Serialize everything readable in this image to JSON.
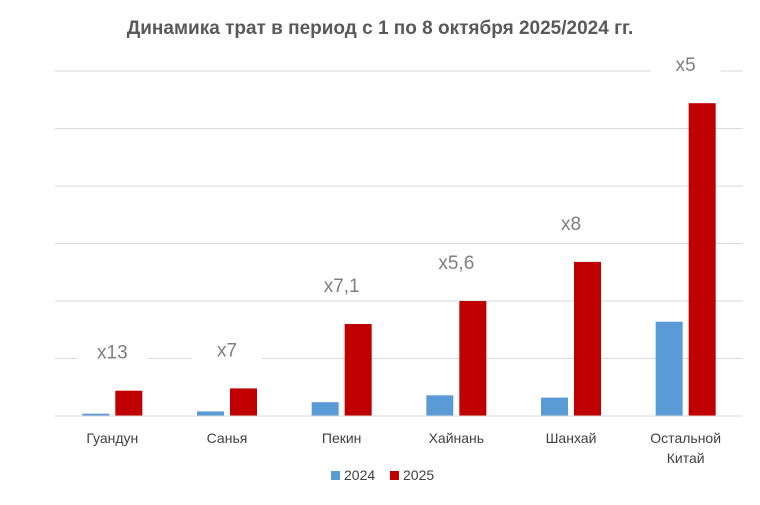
{
  "chart_data": {
    "type": "bar",
    "title": "Динамика трат в период с 1 по 8 октября 2025/2024 гг.",
    "categories": [
      "Гуандун",
      "Санья",
      "Пекин",
      "Хайнань",
      "Шанхай",
      "Остальной Китай"
    ],
    "category_lines": [
      [
        "Гуандун"
      ],
      [
        "Санья"
      ],
      [
        "Пекин"
      ],
      [
        "Хайнань"
      ],
      [
        "Шанхай"
      ],
      [
        "Остальной",
        "Китай"
      ]
    ],
    "series": [
      {
        "name": "2024",
        "color": "#5b9bd5",
        "values": [
          1,
          2,
          6,
          9,
          8,
          41
        ]
      },
      {
        "name": "2025",
        "color": "#c00000",
        "values": [
          11,
          12,
          40,
          50,
          67,
          136
        ]
      }
    ],
    "annotations": [
      "x13",
      "x7",
      "x7,1",
      "x5,6",
      "x8",
      "x5"
    ],
    "ylim": [
      0,
      150
    ],
    "grid_step": 25,
    "grid": true,
    "y_tick_labels": false,
    "legend_position": "bottom"
  }
}
